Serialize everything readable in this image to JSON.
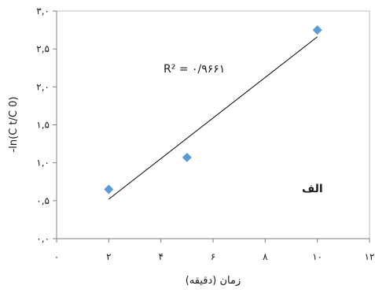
{
  "chart_data": {
    "type": "scatter",
    "xlabel": "زمان (دقیقه)",
    "ylabel": "-ln(C t/C 0)",
    "xlim": [
      0,
      12
    ],
    "ylim": [
      0,
      3
    ],
    "x_ticks": [
      0,
      2,
      4,
      6,
      8,
      10,
      12
    ],
    "x_tick_labels": [
      "۰",
      "۲",
      "۴",
      "۶",
      "۸",
      "۱۰",
      "۱۲"
    ],
    "y_ticks": [
      0,
      0.5,
      1,
      1.5,
      2,
      2.5,
      3
    ],
    "y_tick_labels": [
      "۰,۰",
      "۰,۵",
      "۱,۰",
      "۱,۵",
      "۲,۰",
      "۲,۵",
      "۳,۰"
    ],
    "grid": false,
    "legend": "none",
    "series": [
      {
        "x": [
          2,
          5,
          10
        ],
        "y": [
          0.65,
          1.07,
          2.75
        ],
        "marker": "diamond",
        "color": "#5b9bd5"
      }
    ],
    "trendline": {
      "x": [
        2,
        10
      ],
      "y": [
        0.52,
        2.66
      ],
      "color": "#000000"
    },
    "annotations": {
      "r2": "R² = ۰/۹۶۶۱",
      "panel": "الف"
    }
  }
}
